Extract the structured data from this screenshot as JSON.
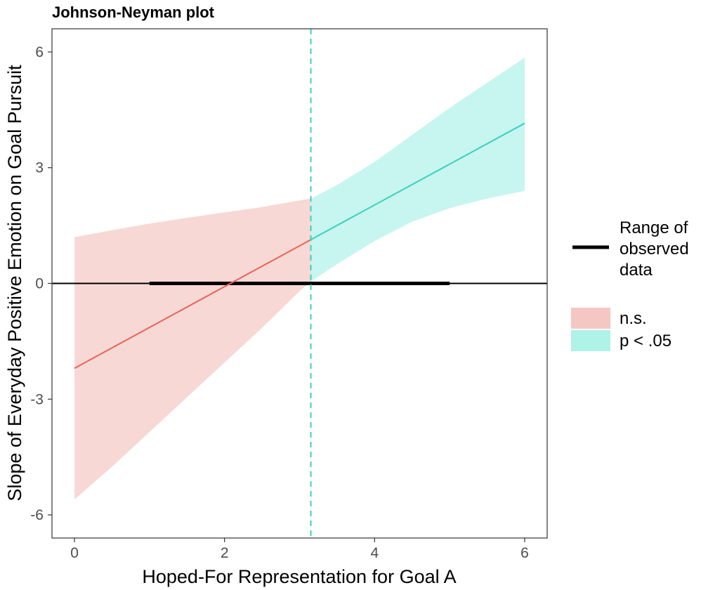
{
  "chart_data": {
    "type": "line",
    "title": "Johnson-Neyman plot",
    "xlabel": "Hoped-For Representation for Goal A",
    "ylabel": "Slope of Everyday Positive Emotion on Goal Pursuit",
    "xlim": [
      -0.3,
      6.3
    ],
    "ylim": [
      -6.6,
      6.6
    ],
    "x_ticks": [
      0,
      2,
      4,
      6
    ],
    "x_tick_labels": [
      "0",
      "2",
      "4",
      "6"
    ],
    "y_ticks": [
      -6,
      -3,
      0,
      3,
      6
    ],
    "y_tick_labels": [
      "-6",
      "-3",
      "0",
      "3",
      "6"
    ],
    "grid": false,
    "jn_point": 3.15,
    "reference_line_y": 0,
    "observed_range": [
      1.0,
      5.0
    ],
    "slope_line": {
      "x": [
        0.0,
        6.0
      ],
      "y": [
        -2.2,
        4.15
      ]
    },
    "confidence_band": {
      "x": [
        0.0,
        0.5,
        1.0,
        1.5,
        2.0,
        2.5,
        3.0,
        3.15,
        3.5,
        4.0,
        4.5,
        5.0,
        5.5,
        6.0
      ],
      "lower": [
        -5.6,
        -4.75,
        -3.85,
        -2.95,
        -2.05,
        -1.15,
        -0.2,
        0.05,
        0.5,
        1.1,
        1.6,
        1.95,
        2.2,
        2.4
      ],
      "upper": [
        1.2,
        1.38,
        1.55,
        1.7,
        1.84,
        1.98,
        2.15,
        2.2,
        2.55,
        3.15,
        3.85,
        4.55,
        5.2,
        5.85
      ]
    },
    "regions": [
      {
        "name": "n.s.",
        "x_range": [
          0.0,
          3.15
        ],
        "color": "#f4c7c3",
        "line_color": "#e8645a"
      },
      {
        "name": "p < .05",
        "x_range": [
          3.15,
          6.0
        ],
        "color": "#aef2e8",
        "line_color": "#3ecfbf"
      }
    ],
    "legend": {
      "placement": "right",
      "range_label_lines": [
        "Range of",
        "observed",
        "data"
      ],
      "significance_entries": [
        "n.s.",
        "p < .05"
      ]
    }
  }
}
